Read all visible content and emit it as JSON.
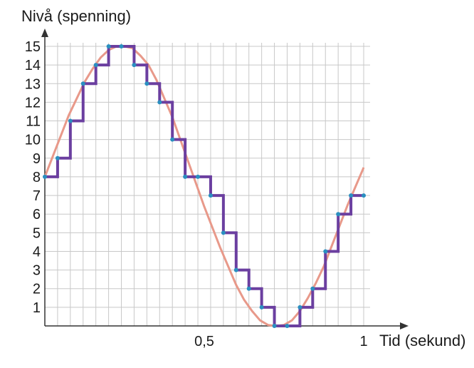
{
  "chart_data": {
    "type": "line",
    "ylabel": "Nivå (spenning)",
    "xlabel": "Tid (sekund)",
    "xlim": [
      0,
      1.1
    ],
    "ylim": [
      0,
      16
    ],
    "x_ticks": [
      {
        "value": 0.5,
        "label": "0,5"
      },
      {
        "value": 1,
        "label": "1"
      }
    ],
    "y_ticks": [
      1,
      2,
      3,
      4,
      5,
      6,
      7,
      8,
      9,
      10,
      11,
      12,
      13,
      14,
      15
    ],
    "grid": true,
    "series": [
      {
        "kind": "continuous",
        "color": "#e8998a",
        "x": [
          0,
          0.025,
          0.05,
          0.075,
          0.1,
          0.125,
          0.15,
          0.175,
          0.2,
          0.225,
          0.25,
          0.275,
          0.3,
          0.325,
          0.35,
          0.375,
          0.4,
          0.425,
          0.45,
          0.475,
          0.5,
          0.525,
          0.55,
          0.575,
          0.6,
          0.625,
          0.65,
          0.675,
          0.7,
          0.725,
          0.75,
          0.775,
          0.8,
          0.825,
          0.85,
          0.875,
          0.9,
          0.925,
          0.95,
          0.975,
          1.0
        ],
        "values": [
          8,
          9.1,
          10.2,
          11.3,
          12.2,
          13.1,
          13.8,
          14.4,
          14.8,
          15.0,
          15.0,
          14.9,
          14.5,
          14.0,
          13.2,
          12.2,
          11.2,
          10.0,
          8.8,
          7.6,
          6.4,
          5.3,
          4.2,
          3.2,
          2.2,
          1.4,
          0.8,
          0.3,
          0.05,
          0.0,
          0.05,
          0.3,
          0.8,
          1.5,
          2.3,
          3.2,
          4.3,
          5.4,
          6.5,
          7.5,
          8.5
        ]
      },
      {
        "kind": "sampled",
        "color": "#6b3fa0",
        "marker_color": "#2a8fc0",
        "x": [
          0,
          0.04,
          0.08,
          0.12,
          0.16,
          0.2,
          0.24,
          0.28,
          0.32,
          0.36,
          0.4,
          0.44,
          0.48,
          0.52,
          0.56,
          0.6,
          0.64,
          0.68,
          0.72,
          0.76,
          0.8,
          0.84,
          0.88,
          0.92,
          0.96,
          1.0
        ],
        "values": [
          8,
          9,
          11,
          13,
          14,
          15,
          15,
          14,
          13,
          12,
          10,
          8,
          8,
          7,
          5,
          3,
          2,
          1,
          0,
          0,
          1,
          2,
          4,
          6,
          7,
          7
        ]
      }
    ]
  }
}
